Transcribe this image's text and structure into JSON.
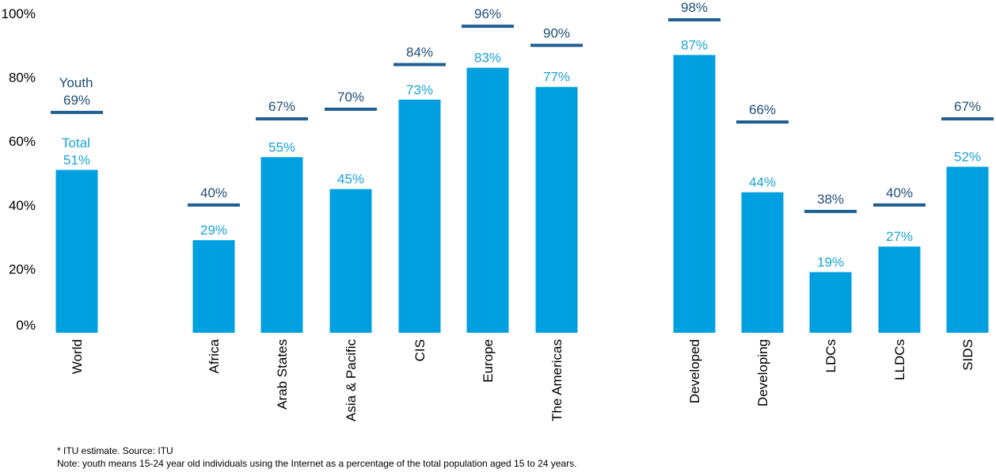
{
  "chart_data": {
    "type": "bar",
    "title": "",
    "xlabel": "",
    "ylabel": "",
    "ylim": [
      0,
      100
    ],
    "yticks": [
      "0%",
      "20%",
      "40%",
      "60%",
      "80%",
      "100%"
    ],
    "categories": [
      "World",
      "Africa",
      "Arab States",
      "Asia & Pacific",
      "CIS",
      "Europe",
      "The Americas",
      "Developed",
      "Developing",
      "LDCs",
      "LLDCs",
      "SIDS"
    ],
    "series": [
      {
        "name": "Total",
        "kind": "bar",
        "color": "#00a0e0",
        "values": [
          51,
          29,
          55,
          45,
          73,
          83,
          77,
          87,
          44,
          19,
          27,
          52
        ],
        "labels": [
          "51%",
          "29%",
          "55%",
          "45%",
          "73%",
          "83%",
          "77%",
          "87%",
          "44%",
          "19%",
          "27%",
          "52%"
        ]
      },
      {
        "name": "Youth",
        "kind": "marker-line",
        "color": "#1f5f91",
        "values": [
          69,
          40,
          67,
          70,
          84,
          96,
          90,
          98,
          66,
          38,
          40,
          67
        ],
        "labels": [
          "69%",
          "40%",
          "67%",
          "70%",
          "84%",
          "96%",
          "90%",
          "98%",
          "66%",
          "38%",
          "40%",
          "67%"
        ]
      }
    ],
    "legend": {
      "placement": "inline-above-first-bar"
    },
    "grid": false
  },
  "notes": [
    "* ITU estimate. Source: ITU",
    "Note: youth means 15-24 year old individuals using the Internet as a percentage of the total population aged 15 to 24 years."
  ]
}
